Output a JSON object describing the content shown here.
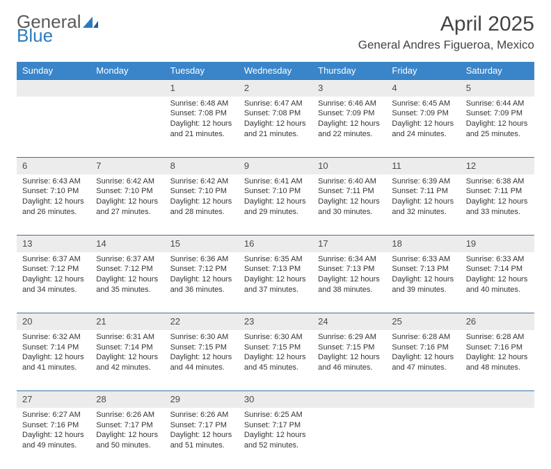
{
  "brand": {
    "word1": "General",
    "word2": "Blue"
  },
  "title": "April 2025",
  "subtitle": "General Andres Figueroa, Mexico",
  "colors": {
    "header_bg": "#3a85c9",
    "header_text": "#ffffff",
    "daynum_bg": "#ececec",
    "daynum_border": "#3a6fa0",
    "brand_gray": "#5a5a5a",
    "brand_blue": "#2b7bbf",
    "body_text": "#333333",
    "page_bg": "#ffffff"
  },
  "fonts": {
    "title_size_pt": 22,
    "subtitle_size_pt": 13,
    "day_header_size_pt": 10,
    "daynum_size_pt": 10,
    "cell_size_pt": 8
  },
  "weekdays": [
    "Sunday",
    "Monday",
    "Tuesday",
    "Wednesday",
    "Thursday",
    "Friday",
    "Saturday"
  ],
  "weeks": [
    [
      {
        "n": "",
        "sunrise": "",
        "sunset": "",
        "daylight": ""
      },
      {
        "n": "",
        "sunrise": "",
        "sunset": "",
        "daylight": ""
      },
      {
        "n": "1",
        "sunrise": "Sunrise: 6:48 AM",
        "sunset": "Sunset: 7:08 PM",
        "daylight": "Daylight: 12 hours and 21 minutes."
      },
      {
        "n": "2",
        "sunrise": "Sunrise: 6:47 AM",
        "sunset": "Sunset: 7:08 PM",
        "daylight": "Daylight: 12 hours and 21 minutes."
      },
      {
        "n": "3",
        "sunrise": "Sunrise: 6:46 AM",
        "sunset": "Sunset: 7:09 PM",
        "daylight": "Daylight: 12 hours and 22 minutes."
      },
      {
        "n": "4",
        "sunrise": "Sunrise: 6:45 AM",
        "sunset": "Sunset: 7:09 PM",
        "daylight": "Daylight: 12 hours and 24 minutes."
      },
      {
        "n": "5",
        "sunrise": "Sunrise: 6:44 AM",
        "sunset": "Sunset: 7:09 PM",
        "daylight": "Daylight: 12 hours and 25 minutes."
      }
    ],
    [
      {
        "n": "6",
        "sunrise": "Sunrise: 6:43 AM",
        "sunset": "Sunset: 7:10 PM",
        "daylight": "Daylight: 12 hours and 26 minutes."
      },
      {
        "n": "7",
        "sunrise": "Sunrise: 6:42 AM",
        "sunset": "Sunset: 7:10 PM",
        "daylight": "Daylight: 12 hours and 27 minutes."
      },
      {
        "n": "8",
        "sunrise": "Sunrise: 6:42 AM",
        "sunset": "Sunset: 7:10 PM",
        "daylight": "Daylight: 12 hours and 28 minutes."
      },
      {
        "n": "9",
        "sunrise": "Sunrise: 6:41 AM",
        "sunset": "Sunset: 7:10 PM",
        "daylight": "Daylight: 12 hours and 29 minutes."
      },
      {
        "n": "10",
        "sunrise": "Sunrise: 6:40 AM",
        "sunset": "Sunset: 7:11 PM",
        "daylight": "Daylight: 12 hours and 30 minutes."
      },
      {
        "n": "11",
        "sunrise": "Sunrise: 6:39 AM",
        "sunset": "Sunset: 7:11 PM",
        "daylight": "Daylight: 12 hours and 32 minutes."
      },
      {
        "n": "12",
        "sunrise": "Sunrise: 6:38 AM",
        "sunset": "Sunset: 7:11 PM",
        "daylight": "Daylight: 12 hours and 33 minutes."
      }
    ],
    [
      {
        "n": "13",
        "sunrise": "Sunrise: 6:37 AM",
        "sunset": "Sunset: 7:12 PM",
        "daylight": "Daylight: 12 hours and 34 minutes."
      },
      {
        "n": "14",
        "sunrise": "Sunrise: 6:37 AM",
        "sunset": "Sunset: 7:12 PM",
        "daylight": "Daylight: 12 hours and 35 minutes."
      },
      {
        "n": "15",
        "sunrise": "Sunrise: 6:36 AM",
        "sunset": "Sunset: 7:12 PM",
        "daylight": "Daylight: 12 hours and 36 minutes."
      },
      {
        "n": "16",
        "sunrise": "Sunrise: 6:35 AM",
        "sunset": "Sunset: 7:13 PM",
        "daylight": "Daylight: 12 hours and 37 minutes."
      },
      {
        "n": "17",
        "sunrise": "Sunrise: 6:34 AM",
        "sunset": "Sunset: 7:13 PM",
        "daylight": "Daylight: 12 hours and 38 minutes."
      },
      {
        "n": "18",
        "sunrise": "Sunrise: 6:33 AM",
        "sunset": "Sunset: 7:13 PM",
        "daylight": "Daylight: 12 hours and 39 minutes."
      },
      {
        "n": "19",
        "sunrise": "Sunrise: 6:33 AM",
        "sunset": "Sunset: 7:14 PM",
        "daylight": "Daylight: 12 hours and 40 minutes."
      }
    ],
    [
      {
        "n": "20",
        "sunrise": "Sunrise: 6:32 AM",
        "sunset": "Sunset: 7:14 PM",
        "daylight": "Daylight: 12 hours and 41 minutes."
      },
      {
        "n": "21",
        "sunrise": "Sunrise: 6:31 AM",
        "sunset": "Sunset: 7:14 PM",
        "daylight": "Daylight: 12 hours and 42 minutes."
      },
      {
        "n": "22",
        "sunrise": "Sunrise: 6:30 AM",
        "sunset": "Sunset: 7:15 PM",
        "daylight": "Daylight: 12 hours and 44 minutes."
      },
      {
        "n": "23",
        "sunrise": "Sunrise: 6:30 AM",
        "sunset": "Sunset: 7:15 PM",
        "daylight": "Daylight: 12 hours and 45 minutes."
      },
      {
        "n": "24",
        "sunrise": "Sunrise: 6:29 AM",
        "sunset": "Sunset: 7:15 PM",
        "daylight": "Daylight: 12 hours and 46 minutes."
      },
      {
        "n": "25",
        "sunrise": "Sunrise: 6:28 AM",
        "sunset": "Sunset: 7:16 PM",
        "daylight": "Daylight: 12 hours and 47 minutes."
      },
      {
        "n": "26",
        "sunrise": "Sunrise: 6:28 AM",
        "sunset": "Sunset: 7:16 PM",
        "daylight": "Daylight: 12 hours and 48 minutes."
      }
    ],
    [
      {
        "n": "27",
        "sunrise": "Sunrise: 6:27 AM",
        "sunset": "Sunset: 7:16 PM",
        "daylight": "Daylight: 12 hours and 49 minutes."
      },
      {
        "n": "28",
        "sunrise": "Sunrise: 6:26 AM",
        "sunset": "Sunset: 7:17 PM",
        "daylight": "Daylight: 12 hours and 50 minutes."
      },
      {
        "n": "29",
        "sunrise": "Sunrise: 6:26 AM",
        "sunset": "Sunset: 7:17 PM",
        "daylight": "Daylight: 12 hours and 51 minutes."
      },
      {
        "n": "30",
        "sunrise": "Sunrise: 6:25 AM",
        "sunset": "Sunset: 7:17 PM",
        "daylight": "Daylight: 12 hours and 52 minutes."
      },
      {
        "n": "",
        "sunrise": "",
        "sunset": "",
        "daylight": ""
      },
      {
        "n": "",
        "sunrise": "",
        "sunset": "",
        "daylight": ""
      },
      {
        "n": "",
        "sunrise": "",
        "sunset": "",
        "daylight": ""
      }
    ]
  ]
}
